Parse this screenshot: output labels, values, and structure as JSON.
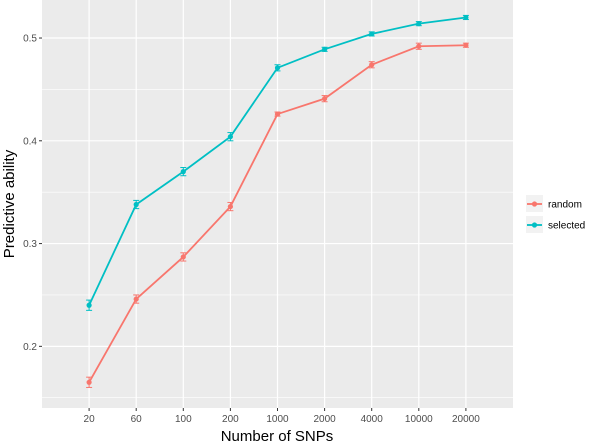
{
  "chart_data": {
    "type": "line",
    "categories": [
      "20",
      "60",
      "100",
      "200",
      "1000",
      "2000",
      "4000",
      "10000",
      "20000"
    ],
    "xlabel": "Number of SNPs",
    "ylabel": "Predictive ability",
    "yticks": [
      "0.2",
      "0.3",
      "0.4",
      "0.5"
    ],
    "ylim": [
      0.14,
      0.537
    ],
    "grid": true,
    "legend_position": "right",
    "series": [
      {
        "name": "random",
        "color": "#F8766D",
        "values": [
          0.165,
          0.246,
          0.287,
          0.336,
          0.426,
          0.441,
          0.474,
          0.492,
          0.493
        ],
        "error": [
          0.005,
          0.004,
          0.004,
          0.004,
          0.002,
          0.003,
          0.003,
          0.003,
          0.002
        ]
      },
      {
        "name": "selected",
        "color": "#00BFC4",
        "values": [
          0.24,
          0.338,
          0.37,
          0.404,
          0.471,
          0.489,
          0.504,
          0.514,
          0.52
        ],
        "error": [
          0.005,
          0.004,
          0.004,
          0.004,
          0.003,
          0.002,
          0.002,
          0.002,
          0.002
        ]
      }
    ]
  }
}
